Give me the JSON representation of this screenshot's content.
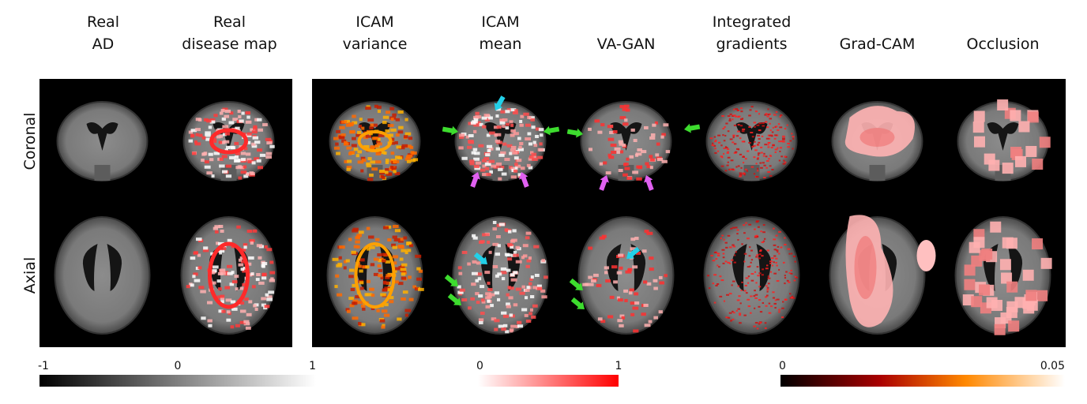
{
  "columns": [
    {
      "lines": [
        "Real",
        "AD"
      ]
    },
    {
      "lines": [
        "Real",
        "disease map"
      ]
    },
    {
      "lines": [
        "ICAM",
        "variance"
      ]
    },
    {
      "lines": [
        "ICAM",
        "mean"
      ]
    },
    {
      "lines": [
        "VA-GAN"
      ]
    },
    {
      "lines": [
        "Integrated",
        "gradients"
      ]
    },
    {
      "lines": [
        "Grad-CAM"
      ]
    },
    {
      "lines": [
        "Occlusion"
      ]
    }
  ],
  "rows": [
    "Coronal",
    "Axial"
  ],
  "colorbars": [
    {
      "ticks": [
        -1,
        0,
        1
      ]
    },
    {
      "ticks": [
        0,
        1
      ]
    },
    {
      "ticks": [
        0,
        0.05
      ]
    }
  ]
}
